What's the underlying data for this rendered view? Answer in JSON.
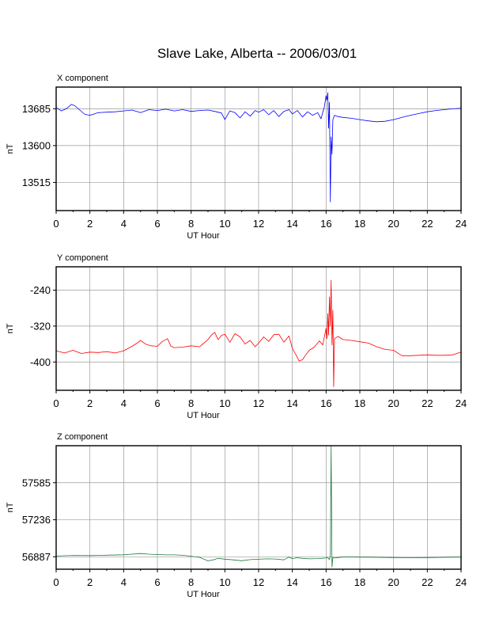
{
  "title": "Slave Lake, Alberta -- 2006/03/01",
  "chart_data": [
    {
      "type": "line",
      "title": "X component",
      "xlabel": "UT Hour",
      "ylabel": "nT",
      "xlim": [
        0,
        24
      ],
      "ylim": [
        13450,
        13735
      ],
      "xticks": [
        "0",
        "2",
        "4",
        "6",
        "8",
        "10",
        "12",
        "14",
        "16",
        "18",
        "20",
        "22",
        "24"
      ],
      "yticks": [
        "13515",
        "13600",
        "13685"
      ],
      "grid": true,
      "series": [
        {
          "color": "#0000ff",
          "x": [
            0,
            0.3,
            0.6,
            0.9,
            1.1,
            1.4,
            1.7,
            2.0,
            2.5,
            3.0,
            3.5,
            4.0,
            4.5,
            5.0,
            5.5,
            6.0,
            6.5,
            7.0,
            7.5,
            8.0,
            8.5,
            9.0,
            9.4,
            9.8,
            10.0,
            10.3,
            10.6,
            10.9,
            11.2,
            11.5,
            11.8,
            12.0,
            12.3,
            12.6,
            12.9,
            13.2,
            13.5,
            13.8,
            14.0,
            14.3,
            14.6,
            14.9,
            15.2,
            15.5,
            15.7,
            15.9,
            16.0,
            16.05,
            16.1,
            16.15,
            16.2,
            16.25,
            16.3,
            16.35,
            16.4,
            16.5,
            16.7,
            17.0,
            17.5,
            18.0,
            18.5,
            19.0,
            19.5,
            20.0,
            20.5,
            21.0,
            21.5,
            22.0,
            22.5,
            23.0,
            23.5,
            24.0
          ],
          "y": [
            13688,
            13680,
            13685,
            13695,
            13692,
            13682,
            13672,
            13670,
            13676,
            13677,
            13678,
            13680,
            13682,
            13676,
            13683,
            13681,
            13684,
            13680,
            13683,
            13679,
            13681,
            13682,
            13679,
            13675,
            13660,
            13680,
            13676,
            13664,
            13678,
            13668,
            13681,
            13677,
            13683,
            13671,
            13681,
            13667,
            13679,
            13683,
            13673,
            13681,
            13666,
            13678,
            13670,
            13676,
            13662,
            13690,
            13715,
            13705,
            13722,
            13640,
            13700,
            13470,
            13620,
            13580,
            13660,
            13670,
            13667,
            13665,
            13663,
            13660,
            13657,
            13655,
            13656,
            13660,
            13665,
            13670,
            13674,
            13678,
            13681,
            13683,
            13685,
            13686
          ]
        }
      ]
    },
    {
      "type": "line",
      "title": "Y component",
      "xlabel": "UT Hour",
      "ylabel": "nT",
      "xlim": [
        0,
        24
      ],
      "ylim": [
        -463,
        -188
      ],
      "xticks": [
        "0",
        "2",
        "4",
        "6",
        "8",
        "10",
        "12",
        "14",
        "16",
        "18",
        "20",
        "22",
        "24"
      ],
      "yticks": [
        "-240",
        "-320",
        "-400"
      ],
      "grid": true,
      "series": [
        {
          "color": "#ff0000",
          "x": [
            0,
            0.5,
            1.0,
            1.5,
            2.0,
            2.5,
            3.0,
            3.5,
            4.0,
            4.5,
            4.8,
            5.0,
            5.3,
            5.6,
            6.0,
            6.3,
            6.6,
            6.8,
            7.0,
            7.5,
            8.0,
            8.5,
            9.0,
            9.2,
            9.4,
            9.6,
            9.8,
            10.0,
            10.3,
            10.6,
            10.9,
            11.2,
            11.5,
            11.8,
            12.0,
            12.3,
            12.6,
            12.9,
            13.2,
            13.5,
            13.8,
            14.0,
            14.2,
            14.4,
            14.6,
            14.8,
            15.0,
            15.3,
            15.6,
            15.8,
            16.0,
            16.05,
            16.1,
            16.15,
            16.2,
            16.25,
            16.3,
            16.35,
            16.4,
            16.45,
            16.5,
            16.7,
            17.0,
            17.5,
            18.0,
            18.5,
            19.0,
            19.5,
            20.0,
            20.5,
            21.0,
            21.5,
            22.0,
            22.5,
            23.0,
            23.5,
            24.0
          ],
          "y": [
            -375,
            -380,
            -374,
            -381,
            -378,
            -379,
            -377,
            -380,
            -375,
            -365,
            -358,
            -352,
            -360,
            -364,
            -365,
            -354,
            -348,
            -365,
            -368,
            -367,
            -364,
            -366,
            -350,
            -340,
            -334,
            -350,
            -341,
            -338,
            -356,
            -337,
            -344,
            -360,
            -352,
            -366,
            -358,
            -344,
            -354,
            -339,
            -338,
            -356,
            -342,
            -370,
            -383,
            -398,
            -395,
            -384,
            -374,
            -367,
            -353,
            -362,
            -325,
            -348,
            -292,
            -340,
            -255,
            -320,
            -218,
            -362,
            -285,
            -455,
            -348,
            -343,
            -350,
            -352,
            -355,
            -358,
            -366,
            -372,
            -374,
            -386,
            -386,
            -385,
            -384,
            -385,
            -385,
            -384,
            -378
          ]
        }
      ]
    },
    {
      "type": "line",
      "title": "Z component",
      "xlabel": "UT Hour",
      "ylabel": "nT",
      "xlim": [
        0,
        24
      ],
      "ylim": [
        56770,
        57934
      ],
      "xticks": [
        "0",
        "2",
        "4",
        "6",
        "8",
        "10",
        "12",
        "14",
        "16",
        "18",
        "20",
        "22",
        "24"
      ],
      "yticks": [
        "56887",
        "57236",
        "57585"
      ],
      "grid": true,
      "series": [
        {
          "color": "#1b7a3c",
          "x": [
            0,
            1.0,
            2.0,
            3.0,
            4.0,
            4.5,
            5.0,
            5.5,
            6.0,
            6.5,
            7.0,
            7.5,
            8.0,
            8.5,
            9.0,
            9.3,
            9.6,
            10.0,
            10.5,
            11.0,
            11.5,
            12.0,
            12.5,
            13.0,
            13.5,
            13.8,
            14.0,
            14.3,
            14.6,
            15.0,
            15.5,
            16.0,
            16.1,
            16.2,
            16.25,
            16.3,
            16.35,
            16.4,
            16.5,
            16.7,
            17.0,
            18.0,
            19.0,
            20.0,
            21.0,
            22.0,
            23.0,
            24.0
          ],
          "y": [
            56894,
            56900,
            56898,
            56902,
            56906,
            56912,
            56918,
            56912,
            56908,
            56905,
            56905,
            56901,
            56892,
            56882,
            56848,
            56858,
            56872,
            56865,
            56858,
            56850,
            56860,
            56864,
            56868,
            56866,
            56858,
            56884,
            56870,
            56878,
            56872,
            56868,
            56870,
            56875,
            56880,
            56860,
            56900,
            57930,
            56790,
            56880,
            56875,
            56880,
            56886,
            56884,
            56882,
            56880,
            56878,
            56880,
            56882,
            56884
          ]
        }
      ]
    }
  ]
}
